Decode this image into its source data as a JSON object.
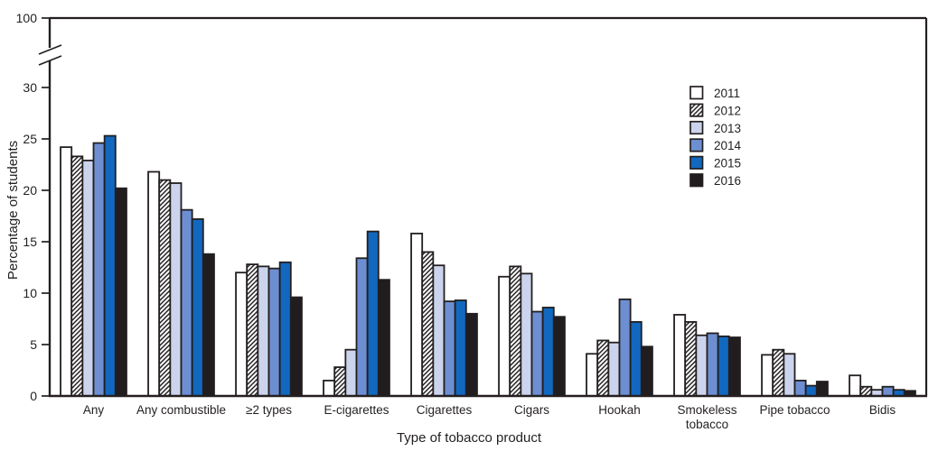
{
  "figure": {
    "ink_color": "#231f20",
    "background": "#ffffff"
  },
  "chart_data": {
    "type": "bar",
    "title": "",
    "xlabel": "Type of tobacco product",
    "ylabel": "Percentage of students",
    "categories": [
      "Any",
      "Any combustible",
      "≥2 types",
      "E-cigarettes",
      "Cigarettes",
      "Cigars",
      "Hookah",
      "Smokeless\ntobacco",
      "Pipe tobacco",
      "Bidis"
    ],
    "series": [
      {
        "name": "2011",
        "fill": "#ffffff",
        "pattern": "none",
        "values": [
          24.2,
          21.8,
          12.0,
          1.5,
          15.8,
          11.6,
          4.1,
          7.9,
          4.0,
          2.0
        ]
      },
      {
        "name": "2012",
        "fill": "#ffffff",
        "pattern": "diagonal-hatch",
        "values": [
          23.3,
          21.0,
          12.8,
          2.8,
          14.0,
          12.6,
          5.4,
          7.2,
          4.5,
          0.9
        ]
      },
      {
        "name": "2013",
        "fill": "#ccd4ed",
        "pattern": "none",
        "values": [
          22.9,
          20.7,
          12.6,
          4.5,
          12.7,
          11.9,
          5.2,
          5.9,
          4.1,
          0.6
        ]
      },
      {
        "name": "2014",
        "fill": "#6d8fd2",
        "pattern": "none",
        "values": [
          24.6,
          18.1,
          12.4,
          13.4,
          9.2,
          8.2,
          9.4,
          6.1,
          1.5,
          0.9
        ]
      },
      {
        "name": "2015",
        "fill": "#1268bf",
        "pattern": "none",
        "values": [
          25.3,
          17.2,
          13.0,
          16.0,
          9.3,
          8.6,
          7.2,
          5.8,
          1.0,
          0.6
        ]
      },
      {
        "name": "2016",
        "fill": "#211d1e",
        "pattern": "none",
        "values": [
          20.2,
          13.8,
          9.6,
          11.3,
          8.0,
          7.7,
          4.8,
          5.7,
          1.4,
          0.5
        ]
      }
    ],
    "yticks": [
      0,
      5,
      10,
      15,
      20,
      25,
      30
    ],
    "ylim": [
      0,
      30
    ],
    "y_axis_break": {
      "lower_max": 30,
      "upper_tick_label": "100"
    },
    "legend_position": "upper-right",
    "grid": false
  }
}
